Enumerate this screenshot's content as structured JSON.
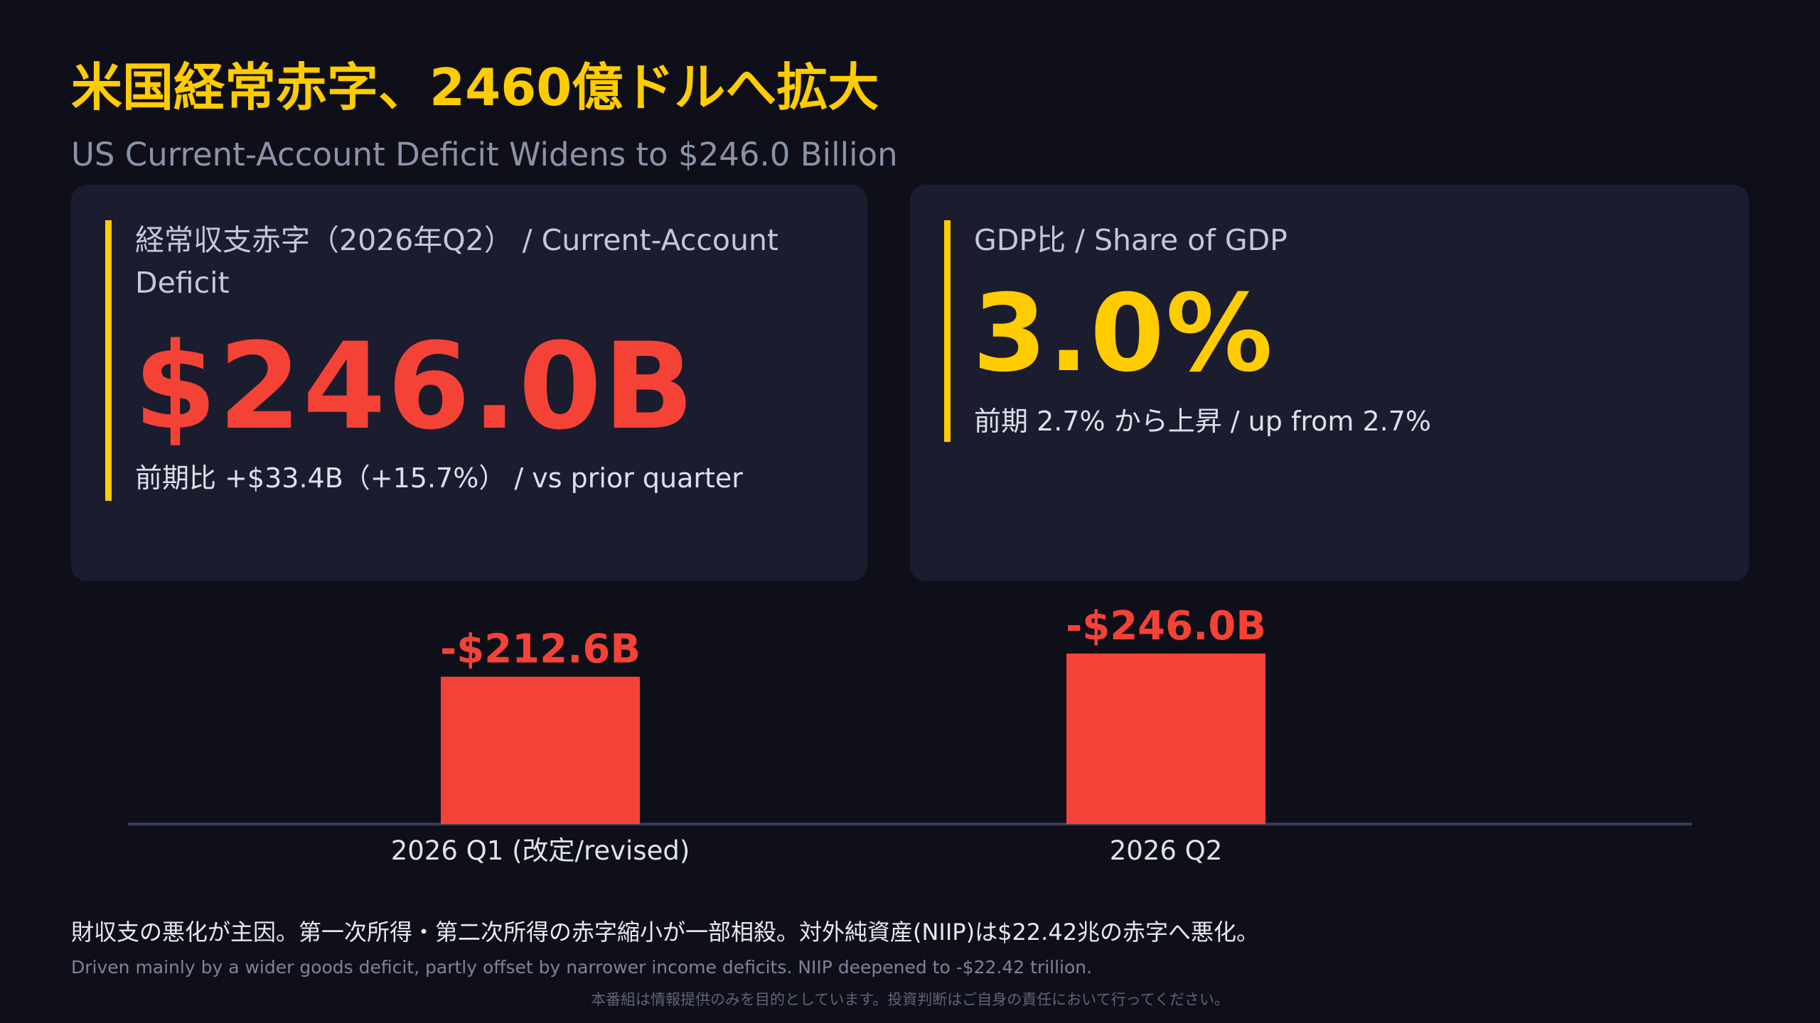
{
  "header": {
    "title": "米国経常赤字、2460億ドルへ拡大",
    "subtitle": "US Current-Account Deficit Widens to $246.0 Billion"
  },
  "cards": {
    "deficit": {
      "label": "経常収支赤字（2026年Q2） / Current-Account Deficit",
      "value": "$246.0B",
      "note": "前期比 +$33.4B（+15.7%） / vs prior quarter"
    },
    "gdp_share": {
      "label": "GDP比 / Share of GDP",
      "value": "3.0%",
      "note": "前期 2.7% から上昇 / up from 2.7%"
    }
  },
  "chart_data": {
    "type": "bar",
    "categories": [
      "2026 Q1 (改定/revised)",
      "2026 Q2"
    ],
    "values": [
      212.6,
      246.0
    ],
    "data_labels": [
      "-$212.6B",
      "-$246.0B"
    ],
    "bar_color": "#f44336",
    "label_color": "#f44336",
    "axis_color": "#3a3b55",
    "ylim": [
      0,
      246.0
    ],
    "grid": false
  },
  "footer": {
    "explain_ja": "財収支の悪化が主因。第一次所得・第二次所得の赤字縮小が一部相殺。対外純資産(NIIP)は$22.42兆の赤字へ悪化。",
    "explain_en": "Driven mainly by a wider goods deficit, partly offset by narrower income deficits. NIIP deepened to -$22.42 trillion.",
    "disclaimer": "本番組は情報提供のみを目的としています。投資判断はご自身の責任において行ってください。"
  },
  "colors": {
    "background": "#0f0f1a",
    "card": "#1b1c2e",
    "accent_yellow": "#ffcc00",
    "deficit_red": "#f44336"
  }
}
